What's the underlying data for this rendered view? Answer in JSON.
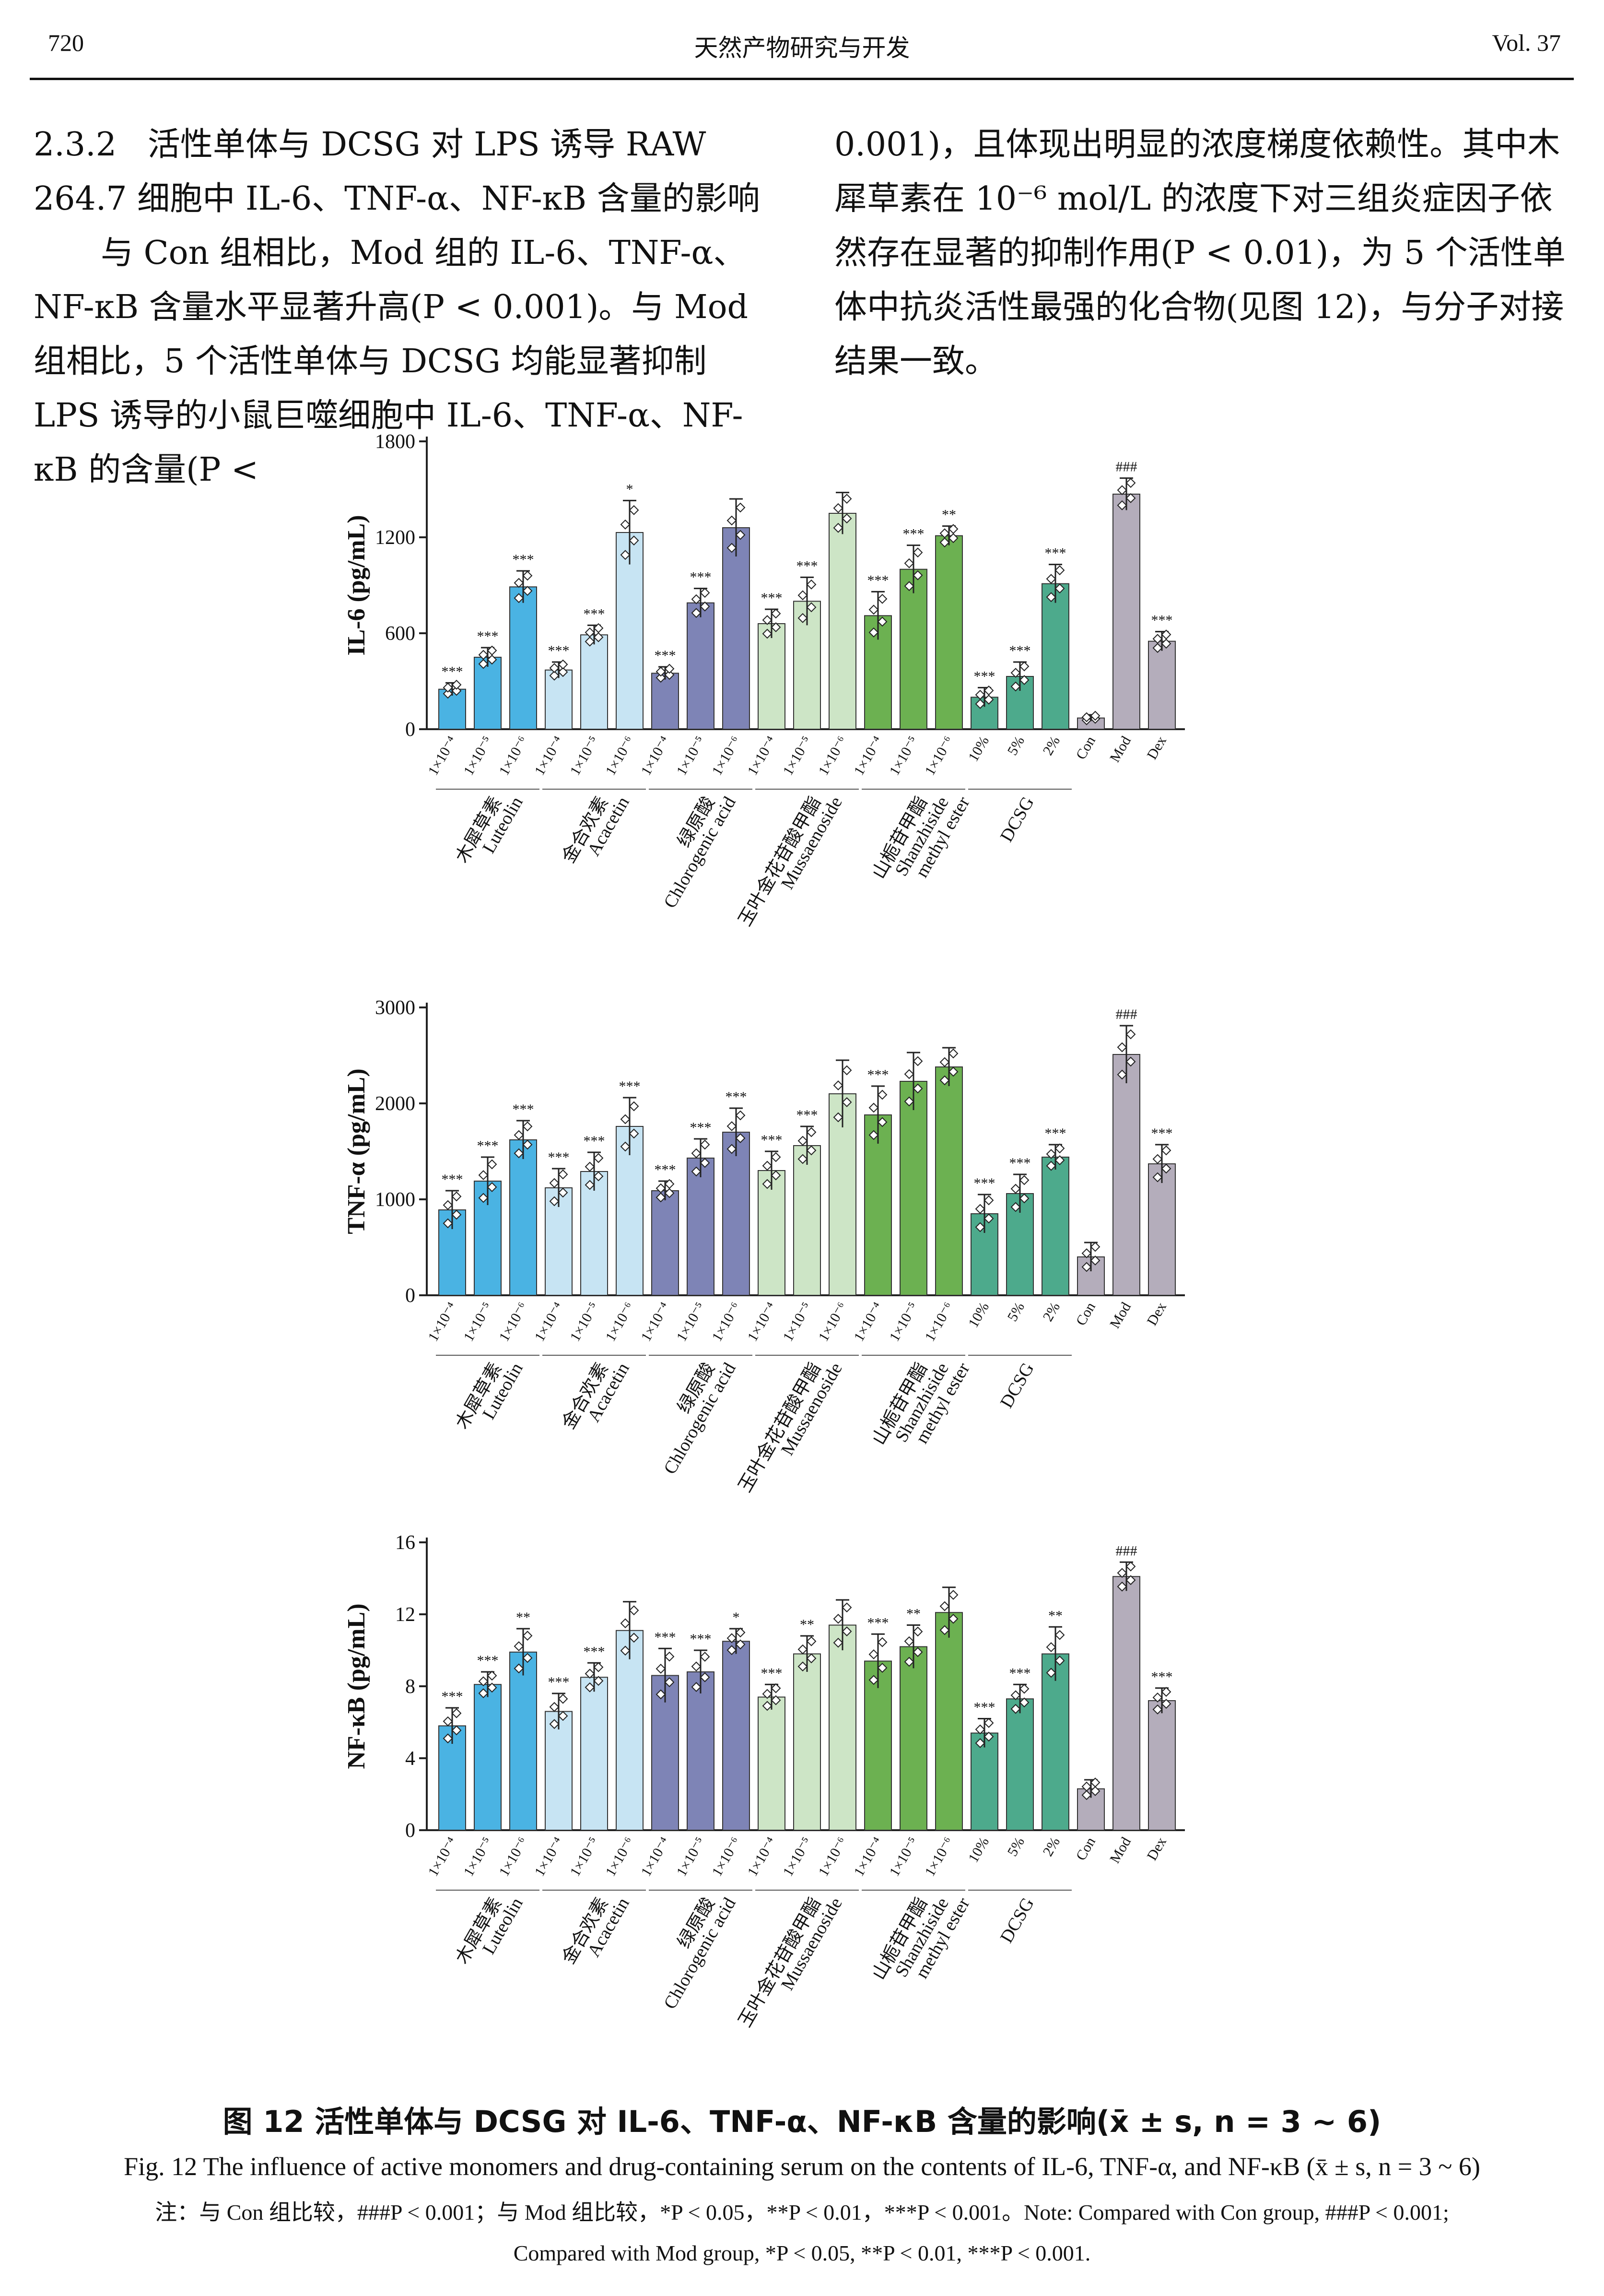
{
  "header": {
    "page_number": "720",
    "journal": "天然产物研究与开发",
    "volume": "Vol. 37"
  },
  "body": {
    "section_number": "2.3.2",
    "section_title": "活性单体与 DCSG 对 LPS 诱导 RAW 264.7 细胞中 IL-6、TNF-α、NF-κB 含量的影响",
    "para_left": "与 Con 组相比，Mod 组的 IL-6、TNF-α、NF-κB 含量水平显著升高(P < 0.001)。与 Mod 组相比，5 个活性单体与 DCSG 均能显著抑制 LPS 诱导的小鼠巨噬细胞中 IL-6、TNF-α、NF-κB 的含量(P <",
    "para_right": "0.001)，且体现出明显的浓度梯度依赖性。其中木犀草素在 10⁻⁶ mol/L 的浓度下对三组炎症因子依然存在显著的抑制作用(P < 0.01)，为 5 个活性单体中抗炎活性最强的化合物(见图 12)，与分子对接结果一致。"
  },
  "figure": {
    "bar_tick_labels": [
      "1×10⁻⁴",
      "1×10⁻⁵",
      "1×10⁻⁶",
      "1×10⁻⁴",
      "1×10⁻⁵",
      "1×10⁻⁶",
      "1×10⁻⁴",
      "1×10⁻⁵",
      "1×10⁻⁶",
      "1×10⁻⁴",
      "1×10⁻⁵",
      "1×10⁻⁶",
      "1×10⁻⁴",
      "1×10⁻⁵",
      "1×10⁻⁶",
      "10%",
      "5%",
      "2%",
      "Con",
      "Mod",
      "Dex"
    ],
    "bar_colors": [
      "#4ab3e3",
      "#4ab3e3",
      "#4ab3e3",
      "#c7e4f3",
      "#c7e4f3",
      "#c7e4f3",
      "#7e84b6",
      "#7e84b6",
      "#7e84b6",
      "#cde5c6",
      "#cde5c6",
      "#cde5c6",
      "#6cb151",
      "#6cb151",
      "#6cb151",
      "#4daa8c",
      "#4daa8c",
      "#4daa8c",
      "#b4adbb",
      "#b4adbb",
      "#b4adbb"
    ],
    "groups": [
      {
        "cn": "木犀草素",
        "en1": "Luteolin",
        "en2": "",
        "en3": ""
      },
      {
        "cn": "金合欢素",
        "en1": "Acacetin",
        "en2": "",
        "en3": ""
      },
      {
        "cn": "绿原酸",
        "en1": "Chlorogenic acid",
        "en2": "",
        "en3": ""
      },
      {
        "cn": "玉叶金花苷酸甲酯",
        "en1": "Mussaenoside",
        "en2": "",
        "en3": ""
      },
      {
        "cn": "山栀苷甲酯",
        "en1": "Shanzhiside",
        "en2": "methyl ester",
        "en3": ""
      },
      {
        "cn": "",
        "en1": "DCSG",
        "en2": "",
        "en3": ""
      }
    ],
    "caption_cn": "图 12   活性单体与 DCSG 对 IL-6、TNF-α、NF-κB 含量的影响(x̄ ± s, n = 3 ~ 6)",
    "caption_en": "Fig. 12   The influence of active monomers and drug-containing serum on the contents of IL-6, TNF-α, and NF-κB (x̄ ± s, n = 3 ~ 6)",
    "note_1": "注：与 Con 组比较，###P < 0.001；与 Mod 组比较，*P < 0.05，**P < 0.01，***P < 0.001。Note: Compared with Con group, ###P < 0.001;",
    "note_2": "Compared with Mod group, *P < 0.05, **P < 0.01, ***P < 0.001."
  },
  "chart_data": [
    {
      "type": "bar",
      "ylabel": "IL-6 (pg/mL)",
      "ylim": [
        0,
        1800
      ],
      "yticks": [
        "0",
        "600",
        "1200",
        "1800"
      ],
      "values": [
        250,
        450,
        890,
        370,
        590,
        1230,
        350,
        790,
        1260,
        660,
        800,
        1350,
        710,
        1000,
        1210,
        200,
        330,
        910,
        70,
        1470,
        550
      ],
      "errors": [
        40,
        60,
        100,
        50,
        60,
        200,
        40,
        90,
        180,
        90,
        150,
        130,
        150,
        150,
        60,
        60,
        90,
        120,
        20,
        100,
        60
      ],
      "significance": [
        "***",
        "***",
        "***",
        "***",
        "***",
        "*",
        "***",
        "***",
        "",
        "***",
        "***",
        "",
        "***",
        "***",
        "**",
        "***",
        "***",
        "***",
        "",
        "###",
        "***"
      ]
    },
    {
      "type": "bar",
      "ylabel": "TNF-α (pg/mL)",
      "ylim": [
        0,
        3000
      ],
      "yticks": [
        "0",
        "1000",
        "2000",
        "3000"
      ],
      "values": [
        890,
        1190,
        1620,
        1120,
        1290,
        1760,
        1090,
        1430,
        1700,
        1300,
        1560,
        2100,
        1880,
        2230,
        2380,
        850,
        1060,
        1440,
        400,
        2510,
        1370
      ],
      "errors": [
        200,
        250,
        200,
        200,
        200,
        300,
        100,
        200,
        250,
        200,
        200,
        350,
        300,
        300,
        200,
        200,
        200,
        130,
        150,
        300,
        200
      ],
      "significance": [
        "***",
        "***",
        "***",
        "***",
        "***",
        "***",
        "***",
        "***",
        "***",
        "***",
        "***",
        "",
        "***",
        "",
        "",
        "***",
        "***",
        "***",
        "",
        "###",
        "***"
      ]
    },
    {
      "type": "bar",
      "ylabel": "NF-κB (pg/mL)",
      "ylim": [
        0,
        16
      ],
      "yticks": [
        "0",
        "4",
        "8",
        "12",
        "16"
      ],
      "values": [
        5.8,
        8.1,
        9.9,
        6.6,
        8.5,
        11.1,
        8.6,
        8.8,
        10.5,
        7.4,
        9.8,
        11.4,
        9.4,
        10.2,
        12.1,
        5.4,
        7.3,
        9.8,
        2.3,
        14.1,
        7.2
      ],
      "errors": [
        1.0,
        0.7,
        1.3,
        1.0,
        0.8,
        1.6,
        1.5,
        1.2,
        0.7,
        0.7,
        1.0,
        1.4,
        1.5,
        1.2,
        1.4,
        0.8,
        0.8,
        1.5,
        0.5,
        0.8,
        0.7
      ],
      "significance": [
        "***",
        "***",
        "**",
        "***",
        "***",
        "",
        "***",
        "***",
        "*",
        "***",
        "**",
        "",
        "***",
        "**",
        "",
        "***",
        "***",
        "**",
        "",
        "###",
        "***"
      ]
    }
  ]
}
